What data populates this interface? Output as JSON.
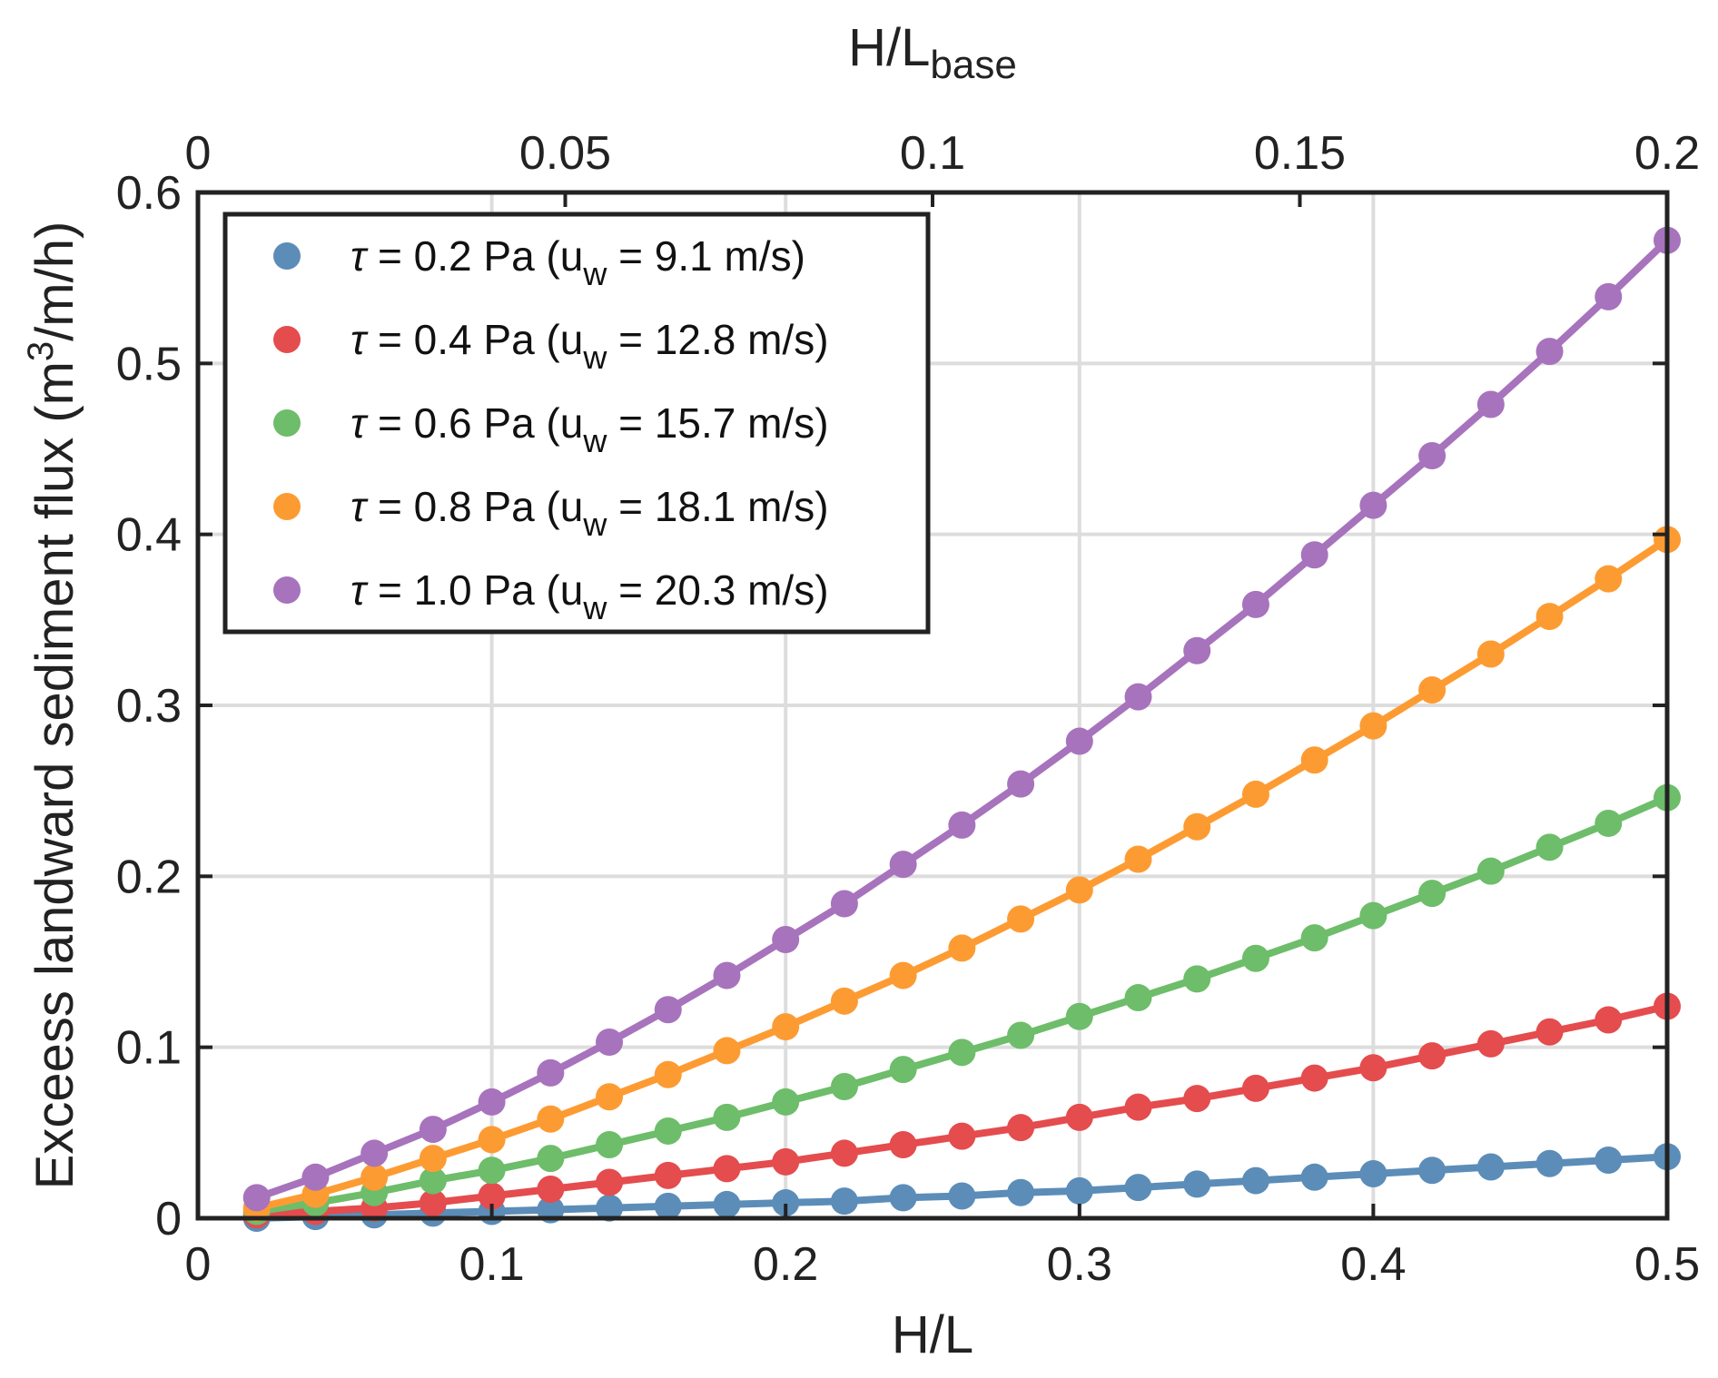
{
  "chart_data": {
    "type": "line",
    "xlabel": "H/L",
    "ylabel": "Exceess landward sediment flux (m³/m/h)",
    "xlabel_top": "H/L",
    "xlabel_top_sub": "base",
    "ylabel_main": "Exceess landward sediment flux (m",
    "ylabel_sup": "3",
    "ylabel_tail": "/m/h)",
    "xlim": [
      0,
      0.5
    ],
    "ylim": [
      0,
      0.6
    ],
    "top_xlim": [
      0,
      0.2
    ],
    "xticks": [
      "0",
      "0.1",
      "0.2",
      "0.3",
      "0.4",
      "0.5"
    ],
    "yticks": [
      "0",
      "0.1",
      "0.2",
      "0.3",
      "0.4",
      "0.5",
      "0.6"
    ],
    "top_xticks": [
      "0",
      "0.05",
      "0.1",
      "0.15",
      "0.2"
    ],
    "grid": true,
    "legend_position": "top-left",
    "x": [
      0.02,
      0.04,
      0.06,
      0.08,
      0.1,
      0.12,
      0.14,
      0.16,
      0.18,
      0.2,
      0.22,
      0.24,
      0.26,
      0.28,
      0.3,
      0.32,
      0.34,
      0.36,
      0.38,
      0.4,
      0.42,
      0.44,
      0.46,
      0.48,
      0.5
    ],
    "series": [
      {
        "tau": "0.2",
        "uw": "9.1",
        "color": "#5b8db8",
        "values": [
          0.0,
          0.001,
          0.002,
          0.003,
          0.004,
          0.005,
          0.006,
          0.007,
          0.008,
          0.009,
          0.01,
          0.012,
          0.013,
          0.015,
          0.016,
          0.018,
          0.02,
          0.022,
          0.024,
          0.026,
          0.028,
          0.03,
          0.032,
          0.034,
          0.036
        ]
      },
      {
        "tau": "0.4",
        "uw": "12.8",
        "color": "#e44c4e",
        "values": [
          0.002,
          0.004,
          0.006,
          0.009,
          0.013,
          0.017,
          0.021,
          0.025,
          0.029,
          0.033,
          0.038,
          0.043,
          0.048,
          0.053,
          0.059,
          0.065,
          0.07,
          0.076,
          0.082,
          0.088,
          0.095,
          0.102,
          0.109,
          0.116,
          0.124
        ]
      },
      {
        "tau": "0.6",
        "uw": "15.7",
        "color": "#6dbd6a",
        "values": [
          0.004,
          0.009,
          0.015,
          0.022,
          0.028,
          0.035,
          0.043,
          0.051,
          0.059,
          0.068,
          0.077,
          0.087,
          0.097,
          0.107,
          0.118,
          0.129,
          0.14,
          0.152,
          0.164,
          0.177,
          0.19,
          0.203,
          0.217,
          0.231,
          0.246
        ]
      },
      {
        "tau": "0.8",
        "uw": "18.1",
        "color": "#fd9b33",
        "values": [
          0.006,
          0.014,
          0.024,
          0.035,
          0.046,
          0.058,
          0.071,
          0.084,
          0.098,
          0.112,
          0.127,
          0.142,
          0.158,
          0.175,
          0.192,
          0.21,
          0.229,
          0.248,
          0.268,
          0.288,
          0.309,
          0.33,
          0.352,
          0.374,
          0.397
        ]
      },
      {
        "tau": "1.0",
        "uw": "20.3",
        "color": "#a773bc",
        "values": [
          0.012,
          0.024,
          0.038,
          0.052,
          0.068,
          0.085,
          0.103,
          0.122,
          0.142,
          0.163,
          0.184,
          0.207,
          0.23,
          0.254,
          0.279,
          0.305,
          0.332,
          0.359,
          0.388,
          0.417,
          0.446,
          0.476,
          0.507,
          0.539,
          0.572
        ]
      }
    ],
    "legend_prefix": "τ",
    "legend_eq": " = ",
    "legend_unit": " Pa (u",
    "legend_sub": "w",
    "legend_tail_eq": " = ",
    "legend_tail_unit": " m/s)"
  }
}
